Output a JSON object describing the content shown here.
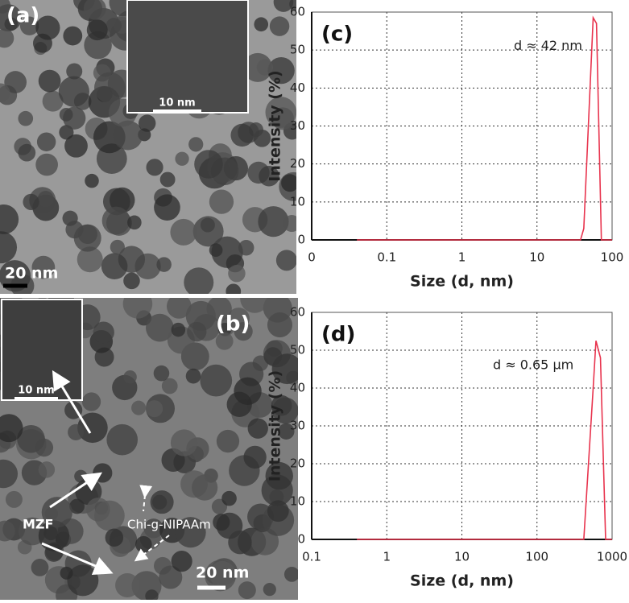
{
  "images": {
    "a": {
      "label": "(a)",
      "scale": "20 nm",
      "inset_scale": "10 nm"
    },
    "b": {
      "label": "(b)",
      "scale": "20 nm",
      "inset_scale": "10 nm",
      "arrow_labels": [
        "MZF",
        "Chi-g-NIPAAm"
      ]
    }
  },
  "chart_data": [
    {
      "type": "line",
      "panel": "(c)",
      "annotation": "d ≈ 42 nm",
      "xlabel": "Size (d, nm)",
      "ylabel": "Intensity (%)",
      "log_x": true,
      "grid": true,
      "xlim": [
        0.01,
        100
      ],
      "xticks": [
        {
          "value": 0.01,
          "label": "0"
        },
        0.1,
        1,
        10,
        100
      ],
      "ylim": [
        0,
        60
      ],
      "yticks": [
        0,
        10,
        20,
        30,
        40,
        50,
        60
      ],
      "x": [
        0.04,
        38,
        42,
        56,
        62,
        72,
        100
      ],
      "series": [
        {
          "color": "#e8344e",
          "values": [
            0,
            0,
            3,
            58.5,
            57,
            0,
            0
          ]
        }
      ]
    },
    {
      "type": "line",
      "panel": "(d)",
      "annotation": "d ≈ 0.65 µm",
      "xlabel": "Size (d, nm)",
      "ylabel": "Intensity (%)",
      "log_x": true,
      "grid": true,
      "xlim": [
        0.1,
        1000
      ],
      "xticks": [
        0.1,
        1,
        10,
        100,
        1000
      ],
      "ylim": [
        0,
        60
      ],
      "yticks": [
        0,
        10,
        20,
        30,
        40,
        50,
        60
      ],
      "x": [
        0.4,
        420,
        560,
        610,
        700,
        820,
        1000
      ],
      "series": [
        {
          "color": "#e8344e",
          "values": [
            0,
            0,
            40,
            52.5,
            48,
            0,
            0
          ]
        }
      ]
    }
  ]
}
